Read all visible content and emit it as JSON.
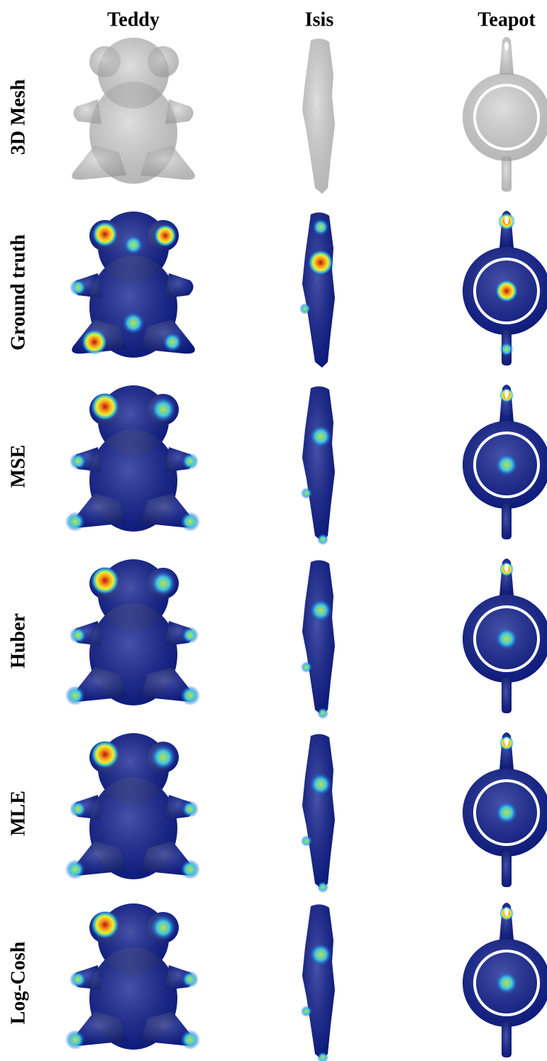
{
  "columns": [
    "Teddy",
    "Isis",
    "Teapot"
  ],
  "rows": [
    "3D Mesh",
    "Ground truth",
    "MSE",
    "Huber",
    "MLE",
    "Log-Cosh"
  ]
}
